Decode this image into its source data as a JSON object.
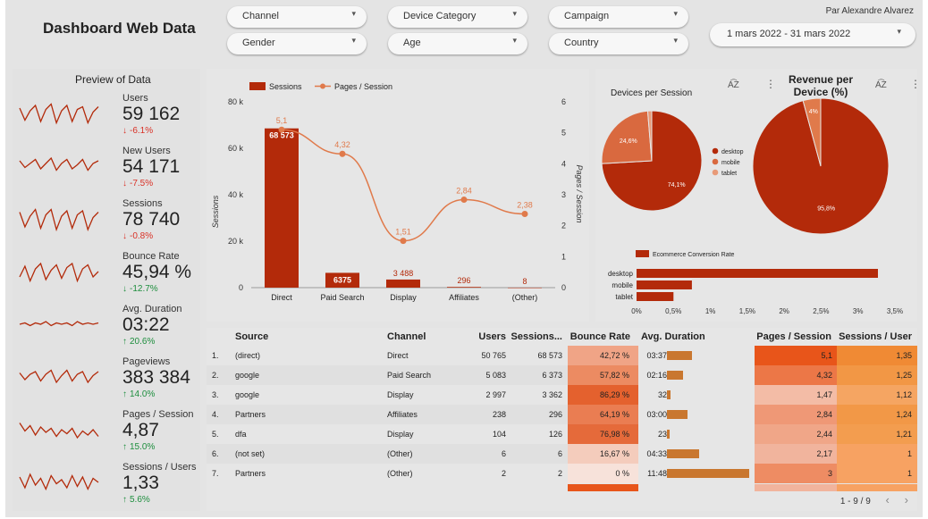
{
  "header": {
    "title": "Dashboard Web Data",
    "author": "Par Alexandre Alvarez",
    "date_range": "1 mars 2022 - 31 mars 2022",
    "filters": [
      "Channel",
      "Device Category",
      "Campaign",
      "Gender",
      "Age",
      "Country"
    ]
  },
  "kpis": {
    "title": "Preview of Data",
    "items": [
      {
        "label": "Users",
        "value": "59 162",
        "delta": "-6.1%",
        "arrow": "↓",
        "direction": "down",
        "spark": [
          14,
          5,
          12,
          16,
          4,
          13,
          17,
          3,
          12,
          16,
          4,
          13,
          15,
          3,
          11,
          15
        ]
      },
      {
        "label": "New Users",
        "value": "54 171",
        "delta": "-7.5%",
        "arrow": "↓",
        "direction": "down",
        "spark": [
          14,
          9,
          12,
          15,
          8,
          12,
          16,
          7,
          12,
          15,
          8,
          11,
          15,
          7,
          12,
          14
        ]
      },
      {
        "label": "Sessions",
        "value": "78 740",
        "delta": "-0.8%",
        "arrow": "↓",
        "direction": "down",
        "spark": [
          15,
          4,
          12,
          17,
          3,
          13,
          17,
          2,
          12,
          16,
          3,
          13,
          16,
          2,
          11,
          15
        ]
      },
      {
        "label": "Bounce Rate",
        "value": "45,94 %",
        "delta": "-12.7%",
        "arrow": "↓",
        "direction": "down-good",
        "spark": [
          6,
          14,
          3,
          12,
          16,
          4,
          11,
          15,
          5,
          13,
          16,
          3,
          12,
          15,
          6,
          10
        ]
      },
      {
        "label": "Avg. Duration",
        "value": "03:22",
        "delta": "20.6%",
        "arrow": "↑",
        "direction": "up",
        "spark": [
          10,
          11,
          9,
          11,
          10,
          12,
          9,
          11,
          10,
          11,
          9,
          12,
          10,
          11,
          10,
          11
        ]
      },
      {
        "label": "Pageviews",
        "value": "383 384",
        "delta": "14.0%",
        "arrow": "↑",
        "direction": "up",
        "spark": [
          13,
          8,
          12,
          14,
          7,
          12,
          15,
          6,
          11,
          15,
          7,
          12,
          14,
          6,
          11,
          14
        ]
      },
      {
        "label": "Pages / Session",
        "value": "4,87",
        "delta": "15.0%",
        "arrow": "↑",
        "direction": "up",
        "spark": [
          15,
          9,
          13,
          6,
          12,
          8,
          11,
          5,
          10,
          7,
          11,
          4,
          9,
          6,
          10,
          5
        ]
      },
      {
        "label": "Sessions / Users",
        "value": "1,33",
        "delta": "5.6%",
        "arrow": "↑",
        "direction": "up",
        "spark": [
          14,
          6,
          16,
          8,
          13,
          5,
          15,
          9,
          12,
          6,
          15,
          7,
          14,
          5,
          13,
          10
        ]
      }
    ]
  },
  "combo_chart": {
    "chart_data": {
      "type": "bar",
      "categories": [
        "Direct",
        "Paid Search",
        "Display",
        "Affiliates",
        "(Other)"
      ],
      "series": [
        {
          "name": "Sessions",
          "values": [
            68573,
            6375,
            3488,
            296,
            8
          ],
          "labels": [
            "68 573",
            "6375",
            "3 488",
            "296",
            "8"
          ]
        },
        {
          "name": "Pages / Session",
          "type": "line",
          "values": [
            5.1,
            4.32,
            1.51,
            2.84,
            2.38
          ],
          "labels": [
            "5,1",
            "4,32",
            "1,51",
            "2,84",
            "2,38"
          ]
        }
      ],
      "ylabel": "Sessions",
      "y2label": "Pages / Session",
      "ylim": [
        0,
        80000
      ],
      "y2lim": [
        0,
        6
      ],
      "yticks": [
        "0",
        "20 k",
        "40 k",
        "60 k",
        "80 k"
      ],
      "y2ticks": [
        "0",
        "1",
        "2",
        "3",
        "4",
        "5",
        "6"
      ],
      "legend": "top-left"
    },
    "colors": {
      "bar": "#b32a0a",
      "line": "#e07a4b"
    }
  },
  "devices_pie": {
    "chart_data": {
      "type": "pie",
      "title": "Devices per Session",
      "labels": [
        "desktop",
        "mobile",
        "tablet"
      ],
      "values": [
        74.1,
        24.6,
        1.3
      ],
      "value_labels": [
        "74,1%",
        "24,6%",
        ""
      ],
      "colors": [
        "#b32a0a",
        "#d9693f",
        "#e89a78"
      ],
      "legend": "right"
    }
  },
  "revenue_pie": {
    "chart_data": {
      "type": "pie",
      "title": "Revenue per Device (%)",
      "labels": [
        "desktop",
        "mobile"
      ],
      "values": [
        95.8,
        4.2
      ],
      "value_labels": [
        "95,8%",
        "4%"
      ],
      "colors": [
        "#b32a0a",
        "#e07a4b"
      ]
    }
  },
  "conversion_chart": {
    "chart_data": {
      "type": "bar",
      "orientation": "horizontal",
      "title": "",
      "categories": [
        "desktop",
        "mobile",
        "tablet"
      ],
      "series": [
        {
          "name": "Ecommerce Conversion Rate",
          "values": [
            3.27,
            0.75,
            0.5
          ]
        }
      ],
      "xlim": [
        0,
        3.5
      ],
      "xticks": [
        "0%",
        "0,5%",
        "1%",
        "1,5%",
        "2%",
        "2,5%",
        "3%",
        "3,5%"
      ],
      "legend": "top"
    }
  },
  "table": {
    "columns": [
      "Source",
      "Channel",
      "Users",
      "Sessions...",
      "Bounce Rate",
      "Avg. Duration",
      "Pages / Session",
      "Sessions / User"
    ],
    "rows": [
      {
        "n": "1.",
        "source": "(direct)",
        "channel": "Direct",
        "users": "50 765",
        "sessions": "68 573",
        "bounce": "42,72 %",
        "duration": "03:37",
        "dur_sec": 217,
        "pps": "5,1",
        "spu": "1,35"
      },
      {
        "n": "2.",
        "source": "google",
        "channel": "Paid Search",
        "users": "5 083",
        "sessions": "6 373",
        "bounce": "57,82 %",
        "duration": "02:16",
        "dur_sec": 136,
        "pps": "4,32",
        "spu": "1,25"
      },
      {
        "n": "3.",
        "source": "google",
        "channel": "Display",
        "users": "2 997",
        "sessions": "3 362",
        "bounce": "86,29 %",
        "duration": "32",
        "dur_sec": 32,
        "pps": "1,47",
        "spu": "1,12"
      },
      {
        "n": "4.",
        "source": "Partners",
        "channel": "Affiliates",
        "users": "238",
        "sessions": "296",
        "bounce": "64,19 %",
        "duration": "03:00",
        "dur_sec": 180,
        "pps": "2,84",
        "spu": "1,24"
      },
      {
        "n": "5.",
        "source": "dfa",
        "channel": "Display",
        "users": "104",
        "sessions": "126",
        "bounce": "76,98 %",
        "duration": "23",
        "dur_sec": 23,
        "pps": "2,44",
        "spu": "1,21"
      },
      {
        "n": "6.",
        "source": "(not set)",
        "channel": "(Other)",
        "users": "6",
        "sessions": "6",
        "bounce": "16,67 %",
        "duration": "04:33",
        "dur_sec": 273,
        "pps": "2,17",
        "spu": "1"
      },
      {
        "n": "7.",
        "source": "Partners",
        "channel": "(Other)",
        "users": "2",
        "sessions": "2",
        "bounce": "0 %",
        "duration": "11:48",
        "dur_sec": 708,
        "pps": "3",
        "spu": "1"
      }
    ],
    "pager": "1 - 9 / 9",
    "prev_icon": "‹",
    "next_icon": "›"
  }
}
